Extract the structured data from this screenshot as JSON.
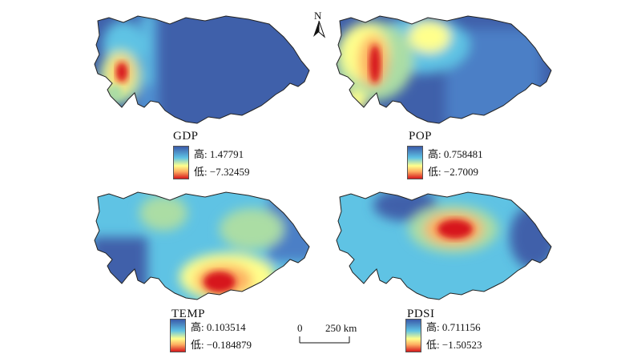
{
  "figure": {
    "panels": [
      {
        "id": "gdp",
        "label": "GDP",
        "legend_high_value": "高: 1.47791",
        "legend_low_value": "低: −7.32459"
      },
      {
        "id": "pop",
        "label": "POP",
        "legend_high_value": "高: 0.758481",
        "legend_low_value": "低: −2.7009"
      },
      {
        "id": "temp",
        "label": "TEMP",
        "legend_high_value": "高: 0.103514",
        "legend_low_value": "低: −0.184879"
      },
      {
        "id": "pdsi",
        "label": "PDSI",
        "legend_high_value": "高: 0.711156",
        "legend_low_value": "低: −1.50523"
      }
    ],
    "north_arrow": {
      "letter": "N"
    },
    "scale_bar": {
      "start": "0",
      "end": "250 km"
    },
    "colors": {
      "low": "#d7191c",
      "mid_low": "#fdae61",
      "mid": "#ffff8c",
      "mid_high": "#abdda4",
      "cyan": "#5fc3e4",
      "high": "#3b5ba9",
      "boundary": "#222222"
    }
  }
}
